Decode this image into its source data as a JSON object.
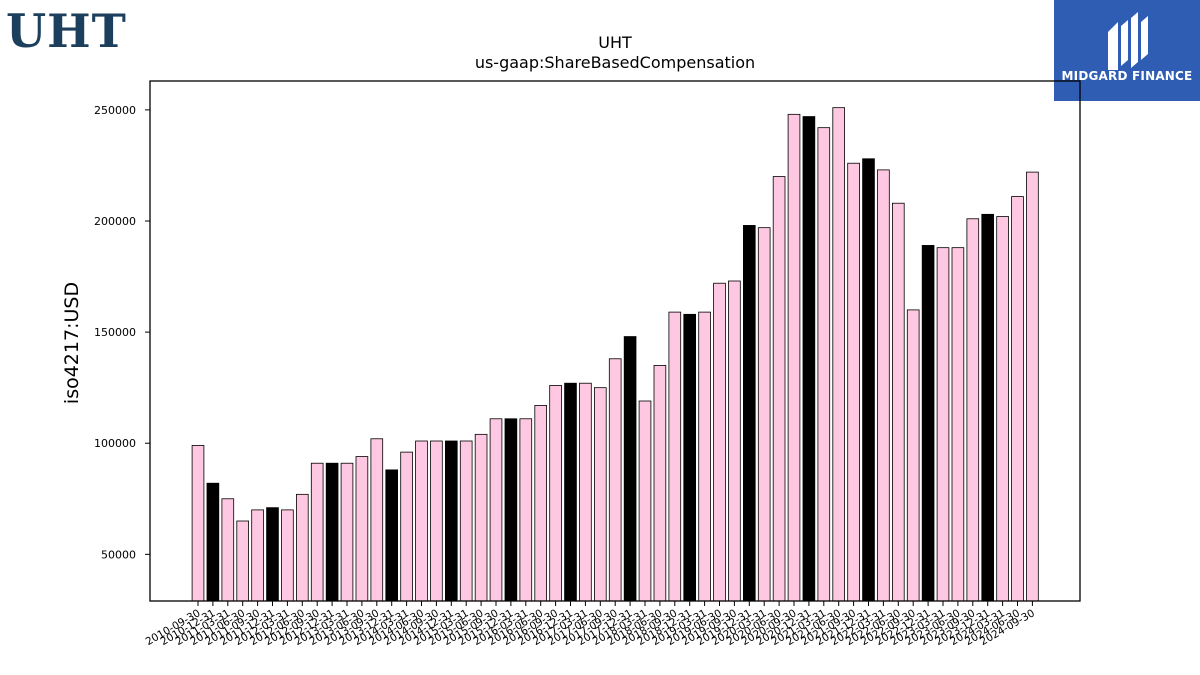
{
  "brand": {
    "left_logo_text": "UHT",
    "right_logo_text": "MIDGARD FINANCE",
    "right_logo_bg": "#2f5db3",
    "left_logo_color": "#1d3f5e"
  },
  "chart_data": {
    "type": "bar",
    "title": "UHT",
    "subtitle": "us-gaap:ShareBasedCompensation",
    "ylabel": "iso4217:USD",
    "xlabel": "",
    "ylim": [
      29000,
      263000
    ],
    "yticks": [
      50000,
      100000,
      150000,
      200000,
      250000
    ],
    "grid": false,
    "colors": {
      "pink": "#ffc8e2",
      "black": "#000000"
    },
    "categories": [
      "2010-09-30",
      "2010-12-31",
      "2011-03-31",
      "2011-06-30",
      "2011-09-30",
      "2011-12-31",
      "2012-03-31",
      "2012-06-30",
      "2012-09-30",
      "2012-12-31",
      "2013-03-31",
      "2013-06-30",
      "2013-09-30",
      "2013-12-31",
      "2014-03-31",
      "2014-06-30",
      "2014-09-30",
      "2014-12-31",
      "2015-03-31",
      "2015-06-30",
      "2015-09-30",
      "2015-12-31",
      "2016-03-31",
      "2016-06-30",
      "2016-09-30",
      "2016-12-31",
      "2017-03-31",
      "2017-06-30",
      "2017-09-30",
      "2017-12-31",
      "2018-03-31",
      "2018-06-30",
      "2018-09-30",
      "2018-12-31",
      "2019-03-31",
      "2019-06-30",
      "2019-09-30",
      "2019-12-31",
      "2020-03-31",
      "2020-06-30",
      "2020-09-30",
      "2020-12-31",
      "2021-03-31",
      "2021-06-30",
      "2021-09-30",
      "2021-12-31",
      "2022-03-31",
      "2022-06-30",
      "2022-09-30",
      "2022-12-31",
      "2023-03-31",
      "2023-06-30",
      "2023-09-30",
      "2023-12-31",
      "2024-03-31",
      "2024-06-30",
      "2024-09-30"
    ],
    "values": [
      99000,
      82000,
      75000,
      65000,
      70000,
      71000,
      70000,
      77000,
      91000,
      91000,
      91000,
      94000,
      102000,
      88000,
      96000,
      101000,
      101000,
      101000,
      101000,
      104000,
      111000,
      111000,
      111000,
      117000,
      126000,
      127000,
      127000,
      125000,
      138000,
      148000,
      119000,
      135000,
      159000,
      158000,
      159000,
      172000,
      173000,
      198000,
      197000,
      220000,
      248000,
      247000,
      242000,
      251000,
      226000,
      228000,
      223000,
      208000,
      160000,
      189000,
      188000,
      188000,
      201000,
      203000,
      202000,
      211000,
      222000
    ],
    "bar_colors": [
      "pink",
      "black",
      "pink",
      "pink",
      "pink",
      "black",
      "pink",
      "pink",
      "pink",
      "black",
      "pink",
      "pink",
      "pink",
      "black",
      "pink",
      "pink",
      "pink",
      "black",
      "pink",
      "pink",
      "pink",
      "black",
      "pink",
      "pink",
      "pink",
      "black",
      "pink",
      "pink",
      "pink",
      "black",
      "pink",
      "pink",
      "pink",
      "black",
      "pink",
      "pink",
      "pink",
      "black",
      "pink",
      "pink",
      "pink",
      "black",
      "pink",
      "pink",
      "pink",
      "black",
      "pink",
      "pink",
      "pink",
      "black",
      "pink",
      "pink",
      "pink",
      "black",
      "pink",
      "pink",
      "pink"
    ]
  }
}
